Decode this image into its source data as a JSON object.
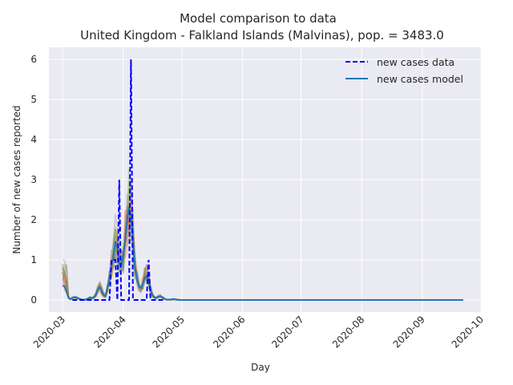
{
  "chart_data": {
    "type": "line",
    "title": "Model comparison to data",
    "subtitle": "United Kingdom - Falkland Islands (Malvinas), pop. = 3483.0",
    "xlabel": "Day",
    "ylabel": "Number of new cases reported",
    "x_ticks": [
      "2020-03",
      "2020-04",
      "2020-05",
      "2020-06",
      "2020-07",
      "2020-08",
      "2020-09",
      "2020-10"
    ],
    "y_ticks": [
      "0",
      "1",
      "2",
      "3",
      "4",
      "5",
      "6"
    ],
    "xlim": [
      "2020-02-23",
      "2020-10-01"
    ],
    "ylim": [
      -0.3,
      6.3
    ],
    "grid": true,
    "legend_position": "top-right",
    "colors": {
      "data": "#0000ff",
      "model": "#1f77b4",
      "plot_bg": "#eaeaf2",
      "grid": "#ffffff"
    },
    "series": [
      {
        "name": "new cases data",
        "style": "dashed",
        "points": [
          {
            "x": "2020-03-06",
            "y": 0
          },
          {
            "x": "2020-03-25",
            "y": 0
          },
          {
            "x": "2020-03-26",
            "y": 1
          },
          {
            "x": "2020-03-28",
            "y": 1
          },
          {
            "x": "2020-03-29",
            "y": 0
          },
          {
            "x": "2020-03-30",
            "y": 3
          },
          {
            "x": "2020-03-31",
            "y": 0
          },
          {
            "x": "2020-04-04",
            "y": 0
          },
          {
            "x": "2020-04-05",
            "y": 6
          },
          {
            "x": "2020-04-06",
            "y": 0
          },
          {
            "x": "2020-04-13",
            "y": 0
          },
          {
            "x": "2020-04-14",
            "y": 1
          },
          {
            "x": "2020-04-15",
            "y": 0
          },
          {
            "x": "2020-04-22",
            "y": 0
          }
        ]
      },
      {
        "name": "new cases model",
        "style": "solid",
        "points": [
          {
            "x": "2020-03-01",
            "y": 0.35
          },
          {
            "x": "2020-03-02",
            "y": 0.35
          },
          {
            "x": "2020-03-03",
            "y": 0.2
          },
          {
            "x": "2020-03-04",
            "y": 0.06
          },
          {
            "x": "2020-03-05",
            "y": 0.02
          },
          {
            "x": "2020-03-06",
            "y": 0.05
          },
          {
            "x": "2020-03-07",
            "y": 0.07
          },
          {
            "x": "2020-03-08",
            "y": 0.06
          },
          {
            "x": "2020-03-09",
            "y": 0.04
          },
          {
            "x": "2020-03-10",
            "y": 0.02
          },
          {
            "x": "2020-03-11",
            "y": 0.01
          },
          {
            "x": "2020-03-12",
            "y": 0.0
          },
          {
            "x": "2020-03-14",
            "y": 0.03
          },
          {
            "x": "2020-03-15",
            "y": 0.06
          },
          {
            "x": "2020-03-16",
            "y": 0.04
          },
          {
            "x": "2020-03-17",
            "y": 0.06
          },
          {
            "x": "2020-03-18",
            "y": 0.12
          },
          {
            "x": "2020-03-19",
            "y": 0.25
          },
          {
            "x": "2020-03-20",
            "y": 0.32
          },
          {
            "x": "2020-03-21",
            "y": 0.22
          },
          {
            "x": "2020-03-22",
            "y": 0.12
          },
          {
            "x": "2020-03-23",
            "y": 0.1
          },
          {
            "x": "2020-03-24",
            "y": 0.3
          },
          {
            "x": "2020-03-25",
            "y": 0.55
          },
          {
            "x": "2020-03-26",
            "y": 0.85
          },
          {
            "x": "2020-03-27",
            "y": 1.05
          },
          {
            "x": "2020-03-28",
            "y": 1.45
          },
          {
            "x": "2020-03-29",
            "y": 1.3
          },
          {
            "x": "2020-03-30",
            "y": 0.9
          },
          {
            "x": "2020-03-31",
            "y": 0.85
          },
          {
            "x": "2020-04-01",
            "y": 1.1
          },
          {
            "x": "2020-04-02",
            "y": 1.5
          },
          {
            "x": "2020-04-03",
            "y": 2.0
          },
          {
            "x": "2020-04-04",
            "y": 2.3
          },
          {
            "x": "2020-04-05",
            "y": 2.1
          },
          {
            "x": "2020-04-06",
            "y": 1.5
          },
          {
            "x": "2020-04-07",
            "y": 0.85
          },
          {
            "x": "2020-04-08",
            "y": 0.5
          },
          {
            "x": "2020-04-09",
            "y": 0.35
          },
          {
            "x": "2020-04-10",
            "y": 0.3
          },
          {
            "x": "2020-04-11",
            "y": 0.4
          },
          {
            "x": "2020-04-12",
            "y": 0.55
          },
          {
            "x": "2020-04-13",
            "y": 0.6
          },
          {
            "x": "2020-04-14",
            "y": 0.45
          },
          {
            "x": "2020-04-15",
            "y": 0.25
          },
          {
            "x": "2020-04-16",
            "y": 0.12
          },
          {
            "x": "2020-04-17",
            "y": 0.06
          },
          {
            "x": "2020-04-18",
            "y": 0.05
          },
          {
            "x": "2020-04-19",
            "y": 0.08
          },
          {
            "x": "2020-04-20",
            "y": 0.09
          },
          {
            "x": "2020-04-21",
            "y": 0.06
          },
          {
            "x": "2020-04-22",
            "y": 0.03
          },
          {
            "x": "2020-04-23",
            "y": 0.01
          },
          {
            "x": "2020-04-25",
            "y": 0.01
          },
          {
            "x": "2020-04-27",
            "y": 0.02
          },
          {
            "x": "2020-04-28",
            "y": 0.01
          },
          {
            "x": "2020-04-30",
            "y": 0.0
          },
          {
            "x": "2020-09-22",
            "y": 0.0
          }
        ]
      }
    ]
  }
}
